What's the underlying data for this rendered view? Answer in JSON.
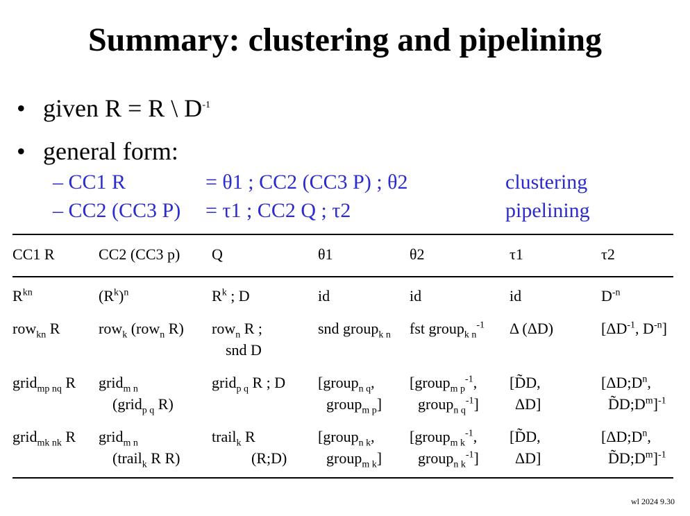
{
  "title": "Summary: clustering and pipelining",
  "bullets": {
    "b1_prefix": "given  R = R \\ D",
    "b1_sup": "-1",
    "b2": "general form:"
  },
  "subs": [
    {
      "lhs": "– CC1 R",
      "rhs": "= θ1 ; CC2 (CC3 P) ; θ2",
      "tag": "clustering"
    },
    {
      "lhs": "– CC2 (CC3 P)",
      "rhs": "= τ1 ; CC2 Q ; τ2",
      "tag": "pipelining"
    }
  ],
  "table": {
    "headers": [
      "CC1 R",
      "CC2 (CC3 p)",
      "Q",
      "θ1",
      "θ2",
      "τ1",
      "τ2"
    ],
    "r1": {
      "c1_base": "R",
      "c1_sup": "kn",
      "c2_a": "(R",
      "c2_sup1": "k",
      "c2_b": ")",
      "c2_sup2": "n",
      "c3_base": "R",
      "c3_sup": "k",
      "c3_rest": " ; D",
      "c4": "id",
      "c5": "id",
      "c6": "id",
      "c7_base": "D",
      "c7_sup": "-n"
    },
    "r2": {
      "c1_a": "row",
      "c1_sub": "kn",
      "c1_b": " R",
      "c2_a": "row",
      "c2_sub1": "k",
      "c2_b": " (row",
      "c2_sub2": "n",
      "c2_c": " R)",
      "c3_a": "row",
      "c3_sub": "n",
      "c3_b": " R ;",
      "c3_l2": "snd D",
      "c4_a": "snd group",
      "c4_sub": "k n",
      "c5_a": "fst group",
      "c5_sub": "k n",
      "c5_sup": "-1",
      "c6": "Δ (ΔD)",
      "c7_a": "[ΔD",
      "c7_sup1": "-1",
      "c7_b": ", D",
      "c7_sup2": "-n",
      "c7_c": "]"
    },
    "r3": {
      "c1_a": "grid",
      "c1_sub": "mp nq",
      "c1_b": " R",
      "c2_a": "grid",
      "c2_sub1": "m n",
      "c2_l2a": "(grid",
      "c2_sub2": "p q",
      "c2_l2b": " R)",
      "c3_a": "grid",
      "c3_sub": "p q",
      "c3_b": " R ; D",
      "c4_a": "[group",
      "c4_sub1": "n q",
      "c4_b": ",",
      "c4_l2a": "group",
      "c4_sub2": "m p",
      "c4_l2b": "]",
      "c5_a": "[group",
      "c5_sub1": "m p",
      "c5_sup1": "-1",
      "c5_b": ",",
      "c5_l2a": "group",
      "c5_sub2": "n q",
      "c5_sup2": "-1",
      "c5_l2b": "]",
      "c6_l1": "[D̃D,",
      "c6_l2": "ΔD]",
      "c7_a": "[ΔD;D",
      "c7_sup1": "n",
      "c7_b": ",",
      "c7_l2a": "D̃D;D",
      "c7_sup2": "m",
      "c7_l2b": "]",
      "c7_sup3": "-1"
    },
    "r4": {
      "c1_a": "grid",
      "c1_sub": "mk nk",
      "c1_b": " R",
      "c2_a": "grid",
      "c2_sub1": "m n",
      "c2_l2a": "(trail",
      "c2_sub2": "k",
      "c2_l2b": " R R)",
      "c3_a": "trail",
      "c3_sub": "k",
      "c3_b": " R",
      "c3_l2": "(R;D)",
      "c4_a": "[group",
      "c4_sub1": "n k",
      "c4_b": ",",
      "c4_l2a": "group",
      "c4_sub2": "m k",
      "c4_l2b": "]",
      "c5_a": "[group",
      "c5_sub1": "m k",
      "c5_sup1": "-1",
      "c5_b": ",",
      "c5_l2a": "group",
      "c5_sub2": "n k",
      "c5_sup2": "-1",
      "c5_l2b": "]",
      "c6_l1": "[D̃D,",
      "c6_l2": "ΔD]",
      "c7_a": "[ΔD;D",
      "c7_sup1": "n",
      "c7_b": ",",
      "c7_l2a": "D̃D;D",
      "c7_sup2": "m",
      "c7_l2b": "]",
      "c7_sup3": "-1"
    }
  },
  "footer": "wl 2024  9.30"
}
